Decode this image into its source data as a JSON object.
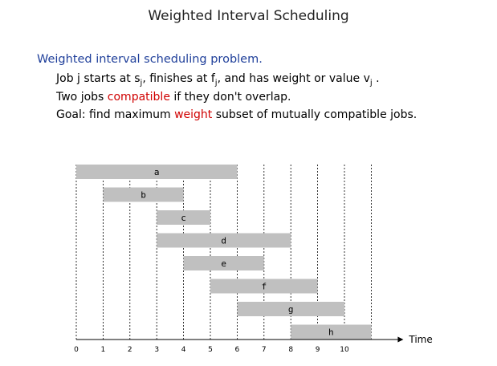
{
  "title": "Weighted Interval Scheduling",
  "heading": "Weighted interval scheduling problem.",
  "line1": {
    "a": "Job j starts at s",
    "sub1": "j",
    "b": ", finishes at f",
    "sub2": "j",
    "c": ", and has weight or value v",
    "sub3": "j",
    "d": " ."
  },
  "line2": {
    "a": "Two jobs ",
    "red": "compatible",
    "b": " if they don't overlap."
  },
  "line3": {
    "a": "Goal:  find maximum ",
    "red": "weight",
    "b": " subset of mutually compatible jobs."
  },
  "chart_data": {
    "type": "gantt",
    "xlabel": "Time",
    "xlim": [
      0,
      11
    ],
    "ticks": [
      "0",
      "1",
      "2",
      "3",
      "4",
      "5",
      "6",
      "7",
      "8",
      "9",
      "10"
    ],
    "jobs": [
      {
        "name": "a",
        "start": 0,
        "finish": 6
      },
      {
        "name": "b",
        "start": 1,
        "finish": 4
      },
      {
        "name": "c",
        "start": 3,
        "finish": 5
      },
      {
        "name": "d",
        "start": 3,
        "finish": 8
      },
      {
        "name": "e",
        "start": 4,
        "finish": 7
      },
      {
        "name": "f",
        "start": 5,
        "finish": 9
      },
      {
        "name": "g",
        "start": 6,
        "finish": 10
      },
      {
        "name": "h",
        "start": 8,
        "finish": 11
      }
    ],
    "bar_color": "#c0c0c0"
  }
}
